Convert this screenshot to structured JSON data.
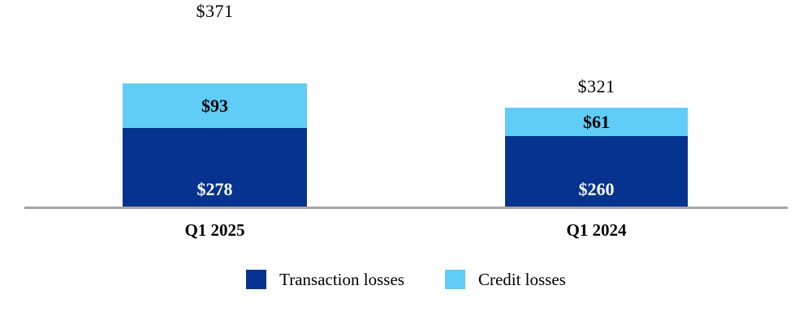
{
  "chart_data": {
    "type": "bar",
    "stacked": true,
    "orientation": "vertical",
    "categories": [
      "Q1 2025",
      "Q1 2024"
    ],
    "series": [
      {
        "name": "Transaction losses",
        "values": [
          278,
          260
        ],
        "color": "#05338f"
      },
      {
        "name": "Credit losses",
        "values": [
          93,
          61
        ],
        "color": "#5fcdf6"
      }
    ],
    "totals": [
      371,
      321
    ],
    "value_prefix": "$",
    "legend_position": "bottom",
    "grid": false,
    "y_axis_visible": false,
    "x_axis_line_color": "#a6a6a6",
    "background": "#ffffff"
  },
  "bars": [
    {
      "category": "Q1 2025",
      "total_label": "$371",
      "credit_label": "$93",
      "transaction_label": "$278"
    },
    {
      "category": "Q1 2024",
      "total_label": "$321",
      "credit_label": "$61",
      "transaction_label": "$260"
    }
  ],
  "legend": {
    "items": [
      {
        "label": "Transaction losses",
        "color": "#05338f"
      },
      {
        "label": "Credit losses",
        "color": "#5fcdf6"
      }
    ]
  },
  "colors": {
    "transaction": "#05338f",
    "credit": "#5fcdf6",
    "axis_line": "#a6a6a6",
    "total_text": "#000000",
    "inside_dark_text": "#ffffff"
  }
}
